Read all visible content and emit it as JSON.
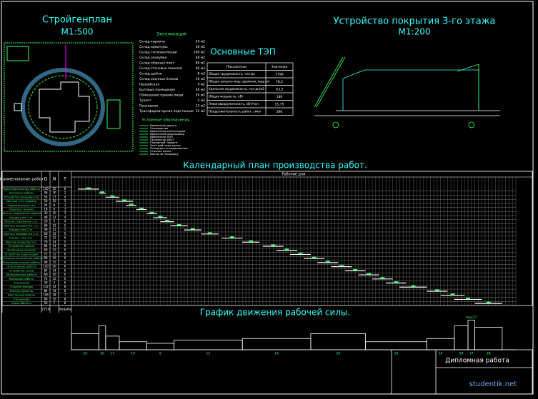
{
  "header": {
    "site_plan_title": "Стройгенплан",
    "site_plan_scale": "М1:500",
    "elevation_title": "Устройство покрытия 3-го этажа",
    "elevation_scale": "М1:200",
    "tep_title": "Основные ТЭП",
    "calendar_title": "Календарный план производства работ.",
    "labor_title": "График движения рабочей силы.",
    "stamp": "Дипломная работа",
    "watermark": "studentik.net"
  },
  "explication": {
    "title": "Экспликация",
    "items": [
      [
        "Склад кирпича",
        "54 м2"
      ],
      [
        "Склад арматуры",
        "36 м2"
      ],
      [
        "Склад теплоизоляции",
        "100 м2"
      ],
      [
        "Склад опалубки",
        "48 м2"
      ],
      [
        "Склад сборных плит",
        "80 м2"
      ],
      [
        "Склад стеновых панелей",
        "40 м2"
      ],
      [
        "Склад щебня",
        "8 м2"
      ],
      [
        "Склад оконных блоков",
        "10 м2"
      ],
      [
        "Прорабская",
        "9 м2"
      ],
      [
        "Бытовые помещения",
        "36 м2"
      ],
      [
        "Помещение приема пищи",
        "30 м2"
      ],
      [
        "Туалет",
        "3 м2"
      ],
      [
        "Проходная",
        "12 м2"
      ],
      [
        "Трансформаторная подстанция",
        "12 м2"
      ]
    ]
  },
  "legend": {
    "title": "Условные обозначения",
    "items": [
      "Временная дорога",
      "Ограждение",
      "Временная канализация",
      "Временный водопровод",
      "Временная ЛЭП",
      "Прожектор ДКсТ",
      "Пожарный гидрант",
      "Зона действия крана",
      "Площадка складирования",
      "Стоянка крана",
      "Въезд на площадку"
    ]
  },
  "tep": {
    "header": [
      "Показатели",
      "Значения"
    ],
    "rows": [
      [
        "Общая трудоемкость, чел-дн",
        "1796"
      ],
      [
        "Общая затрата маш. времени, маш-см",
        "78,5"
      ],
      [
        "Удельная трудоемкость, чел-дн/м2",
        "0,13"
      ],
      [
        "Общая мощность, кВт",
        "180"
      ],
      [
        "Энерговооруженность, кВт/чел",
        "15,75"
      ],
      [
        "Продолжительность работ, смен",
        "390"
      ]
    ]
  },
  "calendar": {
    "header": [
      "Наименование работ",
      "Q",
      "N",
      "T"
    ],
    "timeline_label": "Рабочие дни",
    "days": 130,
    "rows": [
      {
        "name": "Подготовительные работы",
        "q": "140",
        "n": "20",
        "t": "6",
        "start": 2,
        "end": 8
      },
      {
        "name": "Земляные работы",
        "q": "36",
        "n": "30",
        "t": "2",
        "start": 8,
        "end": 10
      },
      {
        "name": "Устройство фундаментов",
        "q": "54",
        "n": "17",
        "t": "4",
        "start": 10,
        "end": 14
      },
      {
        "name": "Монтаж стен подвала",
        "q": "50",
        "n": "10",
        "t": "5",
        "start": 13,
        "end": 18
      },
      {
        "name": "Гидроизоляция стен",
        "q": "24",
        "n": "8",
        "t": "3",
        "start": 16,
        "end": 19
      },
      {
        "name": "Обратная засыпка",
        "q": "18",
        "n": "6",
        "t": "3",
        "start": 19,
        "end": 22
      },
      {
        "name": "Монтаж перекрытия подвала",
        "q": "30",
        "n": "10",
        "t": "3",
        "start": 22,
        "end": 25
      },
      {
        "name": "Кладка стен 1 эт.",
        "q": "48",
        "n": "12",
        "t": "4",
        "start": 24,
        "end": 28
      },
      {
        "name": "Монтаж перемычек 1 эт.",
        "q": "20",
        "n": "5",
        "t": "4",
        "start": 26,
        "end": 30
      },
      {
        "name": "Монтаж перекрытия 1 эт.",
        "q": "60",
        "n": "12",
        "t": "5",
        "start": 29,
        "end": 34
      },
      {
        "name": "Кладка стен 2 эт.",
        "q": "48",
        "n": "12",
        "t": "5",
        "start": 33,
        "end": 38
      },
      {
        "name": "Монтаж перекрытия 2 эт.",
        "q": "60",
        "n": "12",
        "t": "5",
        "start": 38,
        "end": 43
      },
      {
        "name": "Кладка стен 3 эт.",
        "q": "72",
        "n": "12",
        "t": "6",
        "start": 44,
        "end": 50
      },
      {
        "name": "Монтаж покрытия 3 эт.",
        "q": "70",
        "n": "14",
        "t": "5",
        "start": 50,
        "end": 55
      },
      {
        "name": "Устройство кровли",
        "q": "84",
        "n": "14",
        "t": "6",
        "start": 56,
        "end": 62
      },
      {
        "name": "Заполнение проемов",
        "q": "60",
        "n": "10",
        "t": "6",
        "start": 60,
        "end": 66
      },
      {
        "name": "Устройство перегородок",
        "q": "72",
        "n": "12",
        "t": "6",
        "start": 64,
        "end": 70
      },
      {
        "name": "Санитарно-технические работы",
        "q": "96",
        "n": "16",
        "t": "6",
        "start": 68,
        "end": 74
      },
      {
        "name": "Электромонтажные работы",
        "q": "90",
        "n": "15",
        "t": "6",
        "start": 72,
        "end": 78
      },
      {
        "name": "Штукатурные работы",
        "q": "120",
        "n": "20",
        "t": "6",
        "start": 76,
        "end": 82
      },
      {
        "name": "Устройство полов",
        "q": "84",
        "n": "14",
        "t": "6",
        "start": 80,
        "end": 86
      },
      {
        "name": "Облицовочные работы",
        "q": "60",
        "n": "10",
        "t": "6",
        "start": 84,
        "end": 90
      },
      {
        "name": "Малярные работы",
        "q": "72",
        "n": "12",
        "t": "6",
        "start": 88,
        "end": 94
      },
      {
        "name": "Остекление",
        "q": "30",
        "n": "5",
        "t": "6",
        "start": 92,
        "end": 98
      },
      {
        "name": "Отделка фасада",
        "q": "112",
        "n": "14",
        "t": "8",
        "start": 96,
        "end": 104
      },
      {
        "name": "Благоустройство",
        "q": "84",
        "n": "14",
        "t": "6",
        "start": 104,
        "end": 110
      },
      {
        "name": "Неучтенные работы",
        "q": "196",
        "n": "28",
        "t": "7",
        "start": 108,
        "end": 115
      },
      {
        "name": "Озеленение",
        "q": "80",
        "n": "10",
        "t": "8",
        "start": 112,
        "end": 120
      },
      {
        "name": "Сдача объекта",
        "q": "56",
        "n": "7",
        "t": "8",
        "start": 118,
        "end": 126
      }
    ],
    "total_label": "2714",
    "total_unit": "Ходьба"
  },
  "labor": {
    "bins": [
      0,
      8,
      10,
      14,
      22,
      30,
      50,
      70,
      86,
      104,
      112,
      116,
      118,
      126
    ],
    "values": [
      20,
      30,
      17,
      10,
      8,
      12,
      14,
      20,
      10,
      14,
      30,
      37,
      28
    ],
    "ylim": [
      0,
      40
    ],
    "max_label": "max37"
  }
}
